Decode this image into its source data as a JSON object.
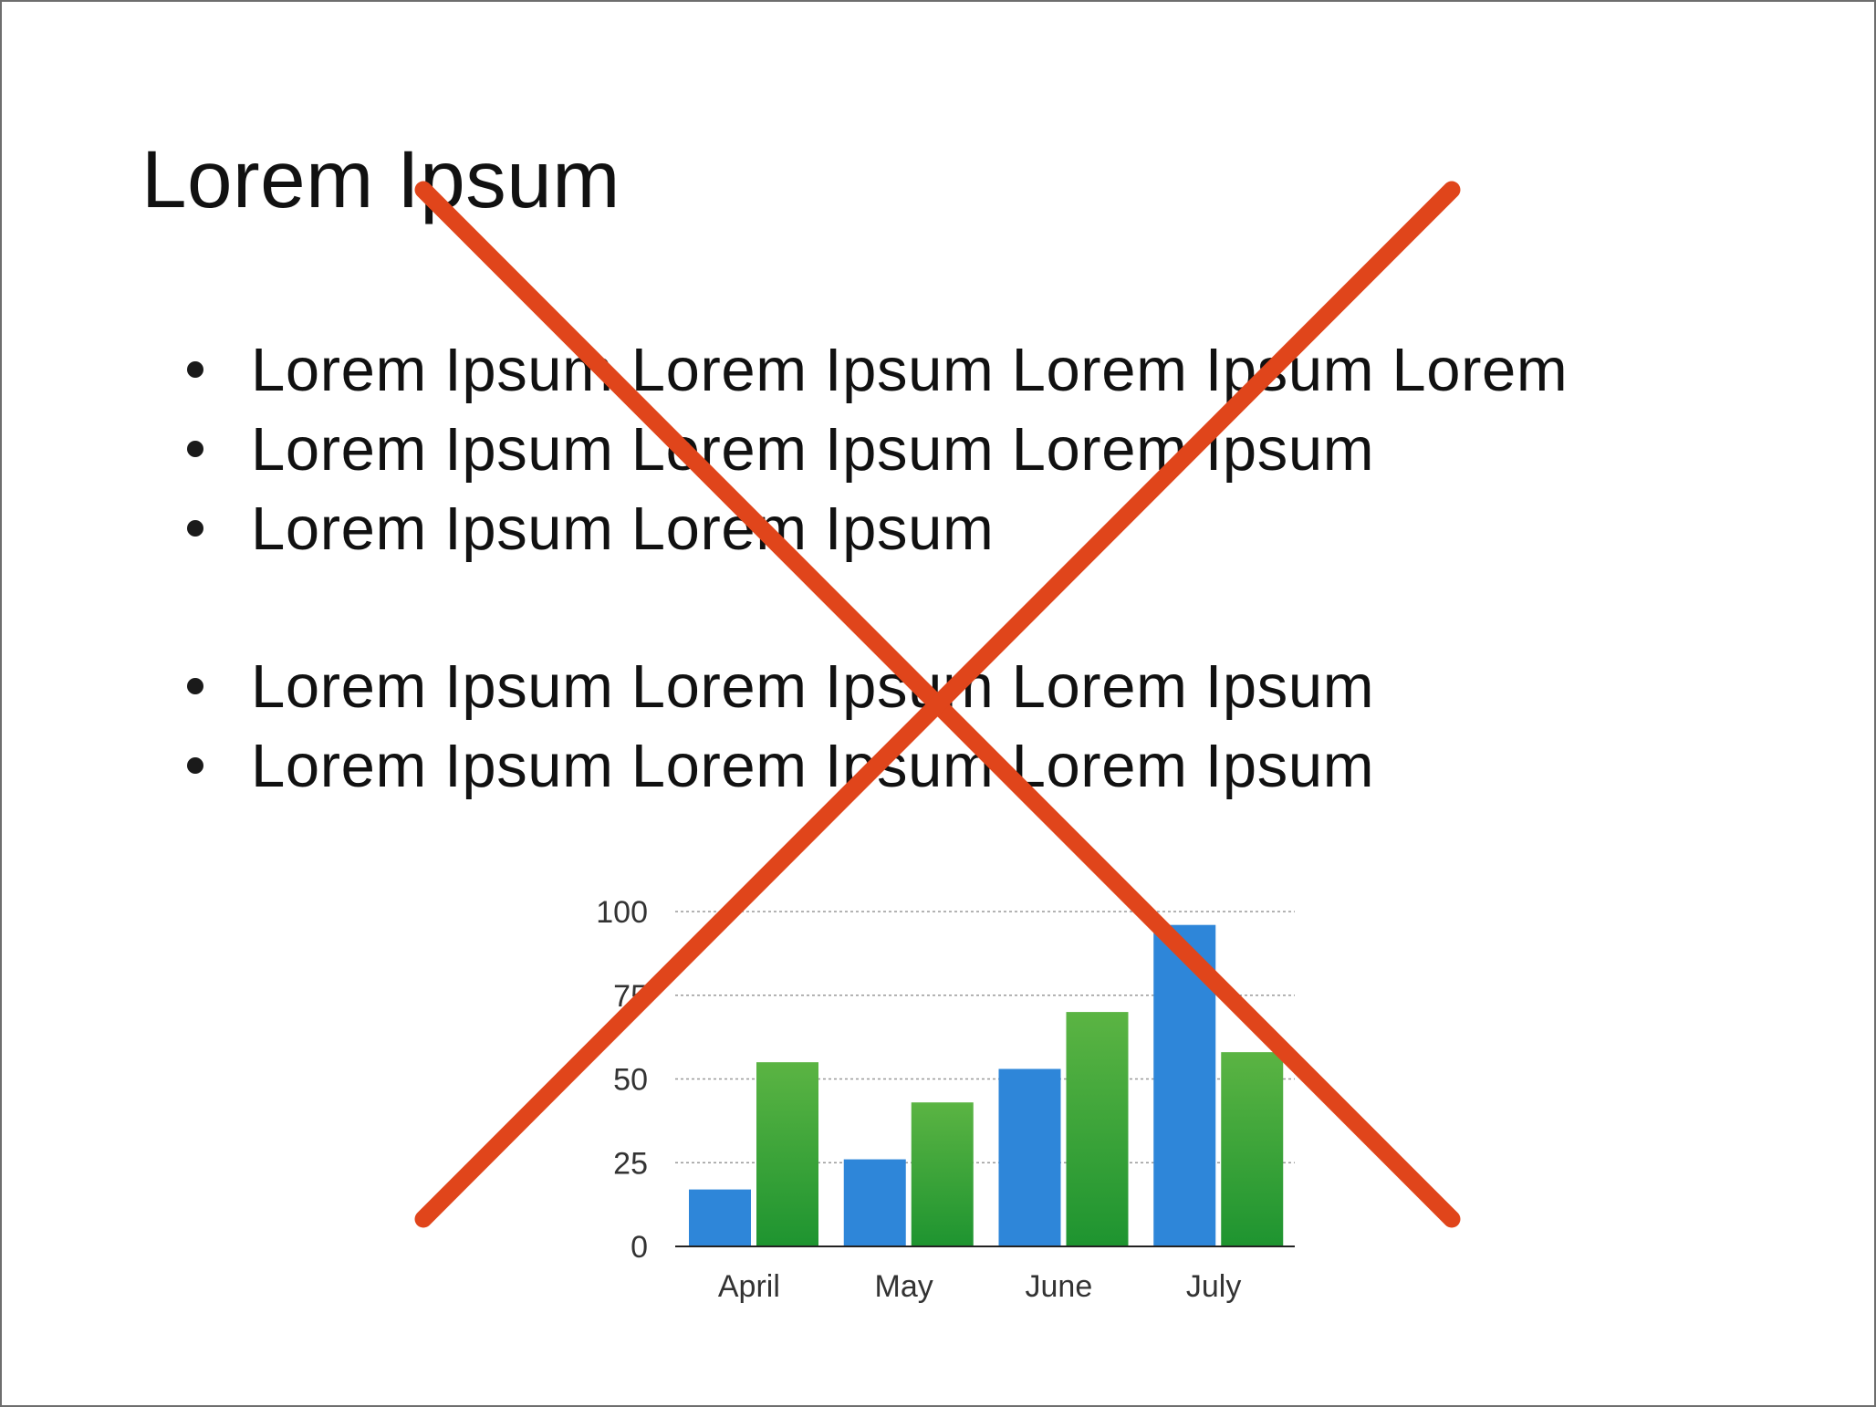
{
  "slide": {
    "title": "Lorem Ipsum",
    "bullets": [
      "Lorem Ipsum Lorem Ipsum Lorem Ipsum Lorem",
      "Lorem Ipsum Lorem Ipsum Lorem Ipsum",
      "Lorem Ipsum Lorem Ipsum",
      "Lorem Ipsum Lorem Ipsum Lorem Ipsum",
      "Lorem Ipsum Lorem Ipsum Lorem Ipsum"
    ]
  },
  "overlay": {
    "icon": "x-mark-icon",
    "color": "#e0451b"
  },
  "chart_data": {
    "type": "bar",
    "categories": [
      "April",
      "May",
      "June",
      "July"
    ],
    "series": [
      {
        "values": [
          17,
          26,
          53,
          96
        ],
        "color": "#2e86d9"
      },
      {
        "values": [
          55,
          43,
          70,
          58
        ],
        "color_top": "#5bb443",
        "color_bottom": "#1e9430"
      }
    ],
    "ylim": [
      0,
      100
    ],
    "yticks": [
      0,
      25,
      50,
      75,
      100
    ],
    "grid": true,
    "grid_style": "dotted",
    "legend": false,
    "title": "",
    "xlabel": "",
    "ylabel": ""
  }
}
